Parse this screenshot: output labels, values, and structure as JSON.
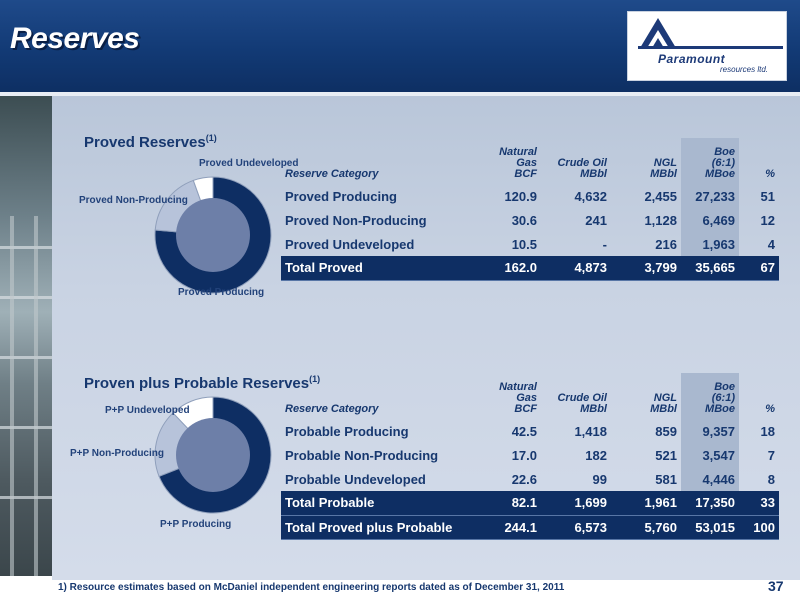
{
  "slide": {
    "title": "Reserves",
    "page_number": "37",
    "footnote": "1) Resource estimates based on McDaniel independent engineering reports dated as of December 31, 2011"
  },
  "logo": {
    "name": "Paramount",
    "sub": "resources ltd."
  },
  "columns": {
    "category": "Reserve Category",
    "gas_line1": "Natural",
    "gas_line2": "Gas",
    "gas_unit": "BCF",
    "oil_line1": "Crude Oil",
    "oil_unit": "MBbl",
    "ngl_line1": "NGL",
    "ngl_unit": "MBbl",
    "boe_line1": "Boe",
    "boe_line2": "(6:1)",
    "boe_unit": "MBoe",
    "pct_unit": "%"
  },
  "proved": {
    "title": "Proved Reserves",
    "sup": "(1)",
    "pie_labels": {
      "undeveloped": "Proved Undeveloped",
      "non_producing": "Proved Non-Producing",
      "producing": "Proved Producing"
    },
    "rows": [
      {
        "category": "Proved Producing",
        "gas": "120.9",
        "oil": "4,632",
        "ngl": "2,455",
        "boe": "27,233",
        "pct": "51"
      },
      {
        "category": "Proved Non-Producing",
        "gas": "30.6",
        "oil": "241",
        "ngl": "1,128",
        "boe": "6,469",
        "pct": "12"
      },
      {
        "category": "Proved Undeveloped",
        "gas": "10.5",
        "oil": "-",
        "ngl": "216",
        "boe": "1,963",
        "pct": "4"
      }
    ],
    "total": {
      "category": "Total Proved",
      "gas": "162.0",
      "oil": "4,873",
      "ngl": "3,799",
      "boe": "35,665",
      "pct": "67"
    }
  },
  "probable": {
    "title": "Proven plus Probable Reserves",
    "sup": "(1)",
    "pie_labels": {
      "undeveloped": "P+P Undeveloped",
      "non_producing": "P+P Non-Producing",
      "producing": "P+P Producing"
    },
    "rows": [
      {
        "category": "Probable Producing",
        "gas": "42.5",
        "oil": "1,418",
        "ngl": "859",
        "boe": "9,357",
        "pct": "18"
      },
      {
        "category": "Probable Non-Producing",
        "gas": "17.0",
        "oil": "182",
        "ngl": "521",
        "boe": "3,547",
        "pct": "7"
      },
      {
        "category": "Probable Undeveloped",
        "gas": "22.6",
        "oil": "99",
        "ngl": "581",
        "boe": "4,446",
        "pct": "8"
      }
    ],
    "totals": [
      {
        "category": "Total Probable",
        "gas": "82.1",
        "oil": "1,699",
        "ngl": "1,961",
        "boe": "17,350",
        "pct": "33"
      },
      {
        "category": "Total Proved plus Probable",
        "gas": "244.1",
        "oil": "6,573",
        "ngl": "5,760",
        "boe": "53,015",
        "pct": "100"
      }
    ]
  },
  "chart_data": [
    {
      "type": "pie",
      "categories": [
        "Proved Producing",
        "Proved Non-Producing",
        "Proved Undeveloped"
      ],
      "values": [
        27233,
        6469,
        1963
      ],
      "colors": [
        "#0e2e63",
        "#b7c3da",
        "#ffffff"
      ]
    },
    {
      "type": "pie",
      "categories": [
        "P+P Producing",
        "P+P Non-Producing",
        "P+P Undeveloped"
      ],
      "values": [
        36590,
        10016,
        6409
      ],
      "colors": [
        "#0e2e63",
        "#b7c3da",
        "#ffffff"
      ]
    }
  ],
  "colors": {
    "navy": "#0e2e63",
    "header": "#123a75",
    "text": "#17386f",
    "boe_column": "#a9b8cf"
  }
}
